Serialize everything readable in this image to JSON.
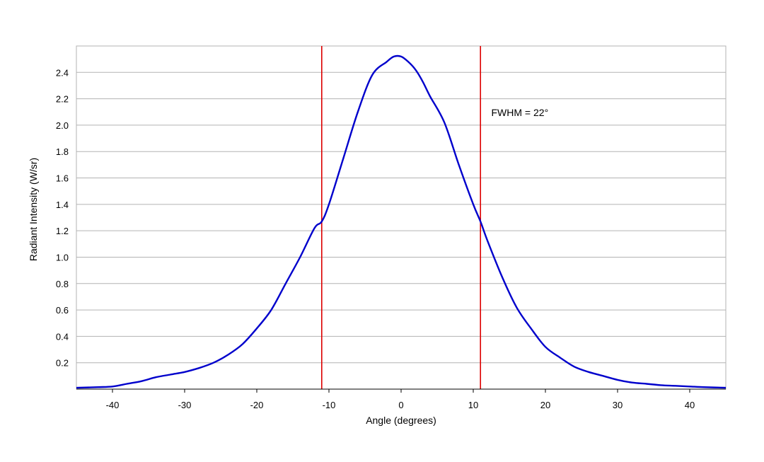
{
  "chart_data": {
    "type": "line",
    "title": "",
    "xlabel": "Angle (degrees)",
    "ylabel": "Radiant Intensity (W/sr)",
    "xlim": [
      -45,
      45
    ],
    "ylim": [
      0,
      2.6
    ],
    "xticks": [
      -40,
      -30,
      -20,
      -10,
      0,
      10,
      20,
      30,
      40
    ],
    "xtick_labels": [
      "-40",
      "-30",
      "-20",
      "-10",
      "0",
      "10",
      "20",
      "30",
      "40"
    ],
    "yticks": [
      0.2,
      0.4,
      0.6,
      0.8,
      1.0,
      1.2,
      1.4,
      1.6,
      1.8,
      2.0,
      2.2,
      2.4
    ],
    "ytick_labels": [
      "0.2",
      "0.4",
      "0.6",
      "0.8",
      "1.0",
      "1.2",
      "1.4",
      "1.6",
      "1.8",
      "2.0",
      "2.2",
      "2.4"
    ],
    "grid": "horizontal",
    "series": [
      {
        "color": "#0000cc",
        "x": [
          -45,
          -42,
          -40,
          -38,
          -36,
          -34,
          -32,
          -30,
          -28,
          -26,
          -24,
          -22,
          -20,
          -18,
          -16,
          -14,
          -12,
          -11,
          -10,
          -8,
          -6,
          -4,
          -2,
          -1,
          0,
          1,
          2,
          3,
          4,
          6,
          8,
          10,
          11,
          12,
          14,
          16,
          18,
          20,
          22,
          24,
          26,
          28,
          30,
          32,
          34,
          36,
          38,
          40,
          42,
          45
        ],
        "y": [
          0.01,
          0.015,
          0.02,
          0.04,
          0.06,
          0.09,
          0.11,
          0.13,
          0.16,
          0.2,
          0.26,
          0.34,
          0.46,
          0.6,
          0.8,
          1.0,
          1.22,
          1.27,
          1.4,
          1.75,
          2.1,
          2.38,
          2.48,
          2.52,
          2.52,
          2.48,
          2.42,
          2.33,
          2.22,
          2.02,
          1.7,
          1.4,
          1.27,
          1.12,
          0.85,
          0.62,
          0.46,
          0.32,
          0.24,
          0.17,
          0.13,
          0.1,
          0.07,
          0.05,
          0.04,
          0.03,
          0.025,
          0.02,
          0.015,
          0.01
        ]
      }
    ],
    "vlines": [
      {
        "x": -11,
        "color": "#dd0000"
      },
      {
        "x": 11,
        "color": "#dd0000"
      }
    ],
    "annotations": [
      {
        "text": "FWHM = 22°",
        "x": 12.5,
        "y": 2.07
      }
    ],
    "colors": {
      "line": "#0000cc",
      "marker": "#dd0000",
      "grid": "#b3b3b3",
      "frame": "#b3b3b3",
      "axis": "#000000"
    }
  }
}
